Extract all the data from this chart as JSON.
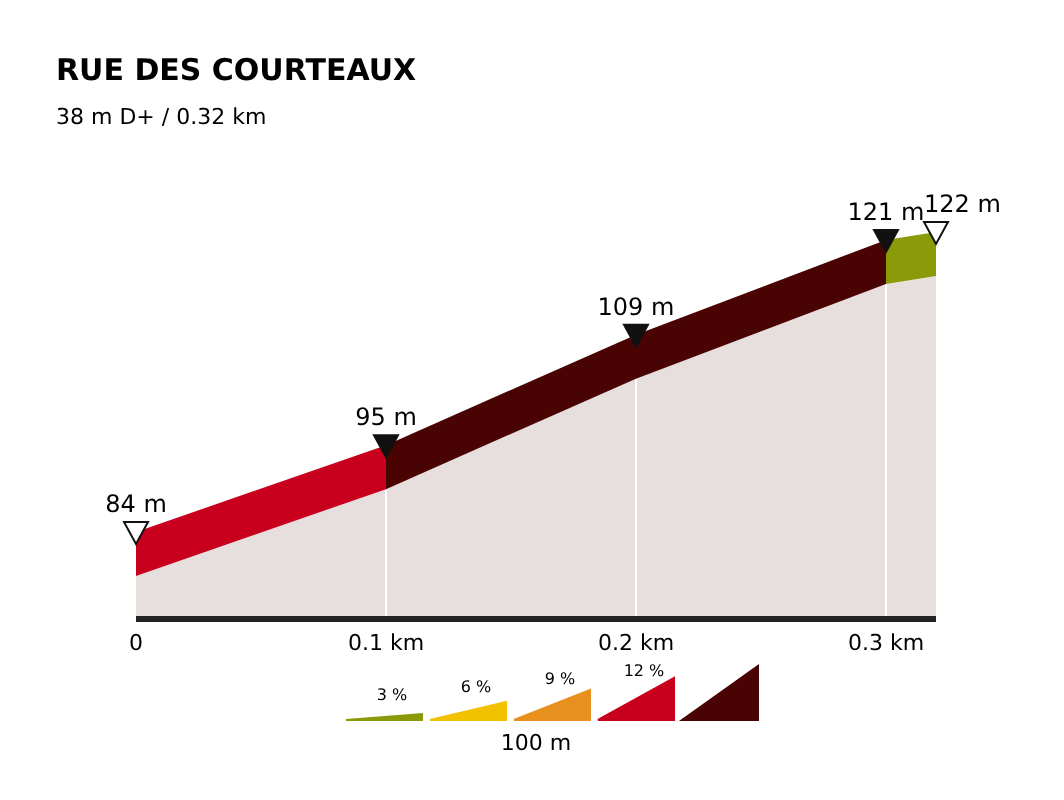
{
  "chart_data": {
    "type": "area",
    "title": "RUE DES COURTEAUX",
    "subtitle": "38 m D+ / 0.32 km",
    "series": [
      {
        "color": "#c8001e",
        "x": [
          0,
          0.1
        ],
        "values": [
          84,
          95
        ],
        "value_labels": [
          "84 m",
          "95 m"
        ]
      },
      {
        "color": "#4a0303",
        "x": [
          0.1,
          0.2
        ],
        "values": [
          95,
          109
        ],
        "value_labels": [
          null,
          "109 m"
        ]
      },
      {
        "color": "#4a0303",
        "x": [
          0.2,
          0.3
        ],
        "values": [
          109,
          121
        ],
        "value_labels": [
          null,
          "121 m"
        ]
      },
      {
        "color": "#8a9a08",
        "x": [
          0.3,
          0.32
        ],
        "values": [
          121,
          122
        ],
        "value_labels": [
          null,
          "122 m"
        ]
      }
    ],
    "marker": "triangle",
    "xlim": [
      0,
      0.32
    ],
    "xticks": [
      {
        "value": 0,
        "label": "0"
      },
      {
        "value": 0.1,
        "label": "0.1 km"
      },
      {
        "value": 0.2,
        "label": "0.2 km"
      },
      {
        "value": 0.3,
        "label": "0.3 km"
      }
    ],
    "tick_labels": "x",
    "annotations": [
      "3 %",
      "6 %",
      "9 %",
      "12 %",
      "100 m"
    ]
  }
}
